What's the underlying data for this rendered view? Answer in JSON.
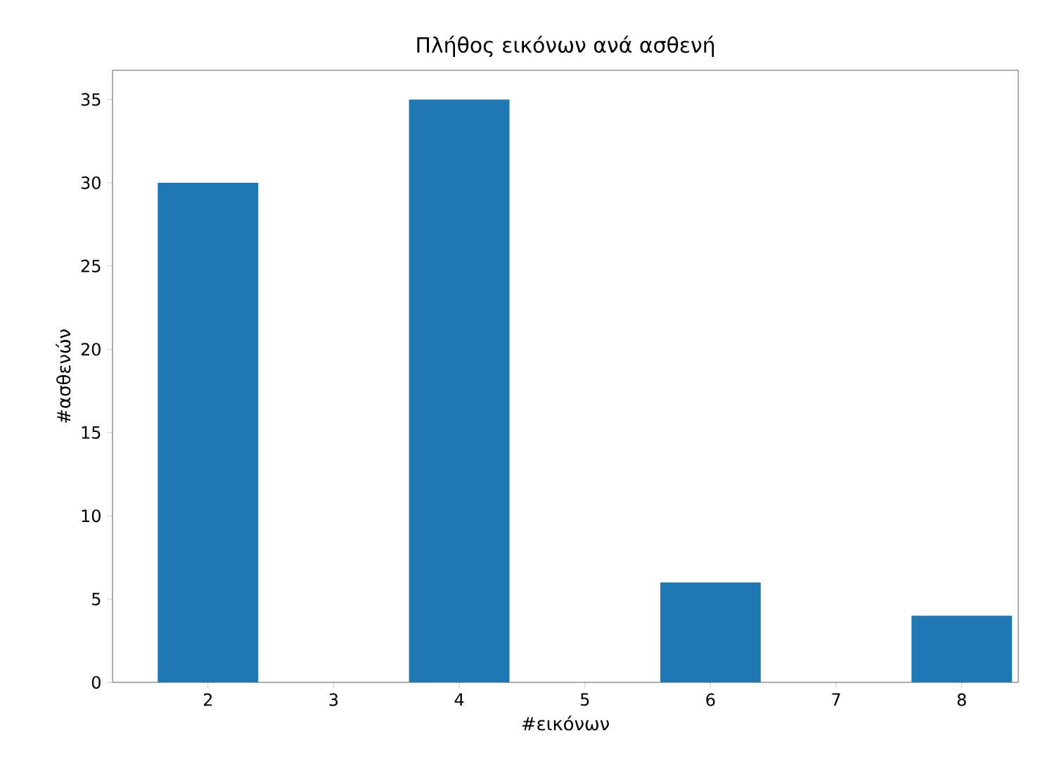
{
  "chart_data": {
    "type": "bar",
    "title": "Πλήθος εικόνων ανά ασθενή",
    "xlabel": "#εικόνων",
    "ylabel": "#ασθενών",
    "x": [
      2,
      4,
      6,
      8
    ],
    "values": [
      30,
      35,
      6,
      4
    ],
    "color": "#1f77b4",
    "xlim": [
      1.24,
      8.45
    ],
    "ylim": [
      0,
      36.75
    ],
    "xticks": [
      2,
      3,
      4,
      5,
      6,
      7,
      8
    ],
    "yticks": [
      0,
      5,
      10,
      15,
      20,
      25,
      30,
      35
    ]
  }
}
